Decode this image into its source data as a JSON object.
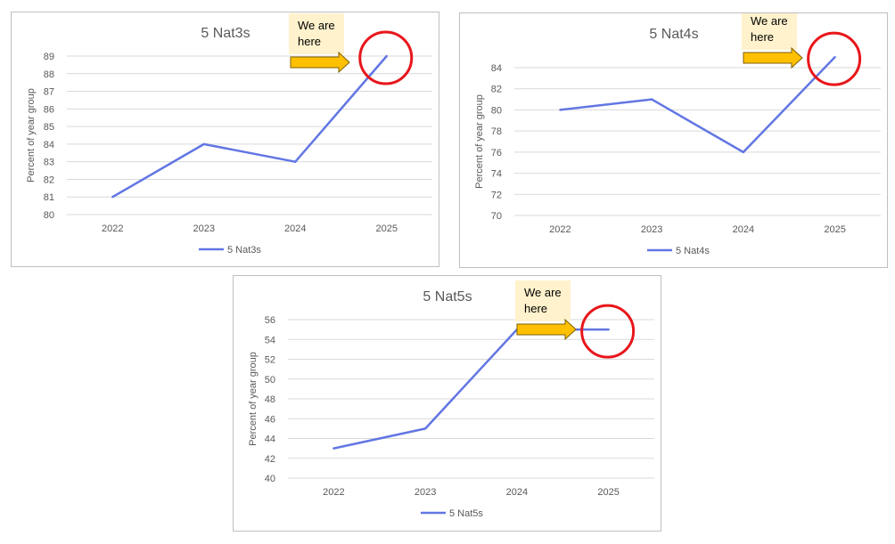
{
  "colors": {
    "line": "#6276e3",
    "grid": "#d9d9d9",
    "circle": "#e8161b",
    "arrow": "#ffc000",
    "note_bg": "#fff2cc"
  },
  "chart_data": [
    {
      "type": "line",
      "title": "5 Nat3s",
      "ylabel": "Percent of year group",
      "categories": [
        "2022",
        "2023",
        "2024",
        "2025"
      ],
      "series": [
        {
          "name": "5 Nat3s",
          "values": [
            81,
            84,
            83,
            89
          ]
        }
      ],
      "ylim": [
        80,
        89
      ],
      "yticks": [
        80,
        81,
        82,
        83,
        84,
        85,
        86,
        87,
        88,
        89
      ],
      "legend": "bottom",
      "grid": true,
      "annotation": {
        "text_line1": "We are",
        "text_line2": "here",
        "highlight_category": "2025"
      }
    },
    {
      "type": "line",
      "title": "5 Nat4s",
      "ylabel": "Percent of year group",
      "categories": [
        "2022",
        "2023",
        "2024",
        "2025"
      ],
      "series": [
        {
          "name": "5 Nat4s",
          "values": [
            80,
            81,
            76,
            85
          ]
        }
      ],
      "ylim": [
        70,
        84
      ],
      "yticks": [
        70,
        72,
        74,
        76,
        78,
        80,
        82,
        84
      ],
      "legend": "bottom",
      "grid": true,
      "annotation": {
        "text_line1": "We are",
        "text_line2": "here",
        "highlight_category": "2025"
      }
    },
    {
      "type": "line",
      "title": "5 Nat5s",
      "ylabel": "Percent of year group",
      "categories": [
        "2022",
        "2023",
        "2024",
        "2025"
      ],
      "series": [
        {
          "name": "5 Nat5s",
          "values": [
            43,
            45,
            55,
            55
          ]
        }
      ],
      "ylim": [
        40,
        56
      ],
      "yticks": [
        40,
        42,
        44,
        46,
        48,
        50,
        52,
        54,
        56
      ],
      "legend": "bottom",
      "grid": true,
      "annotation": {
        "text_line1": "We are",
        "text_line2": "here",
        "highlight_category": "2025"
      }
    }
  ]
}
